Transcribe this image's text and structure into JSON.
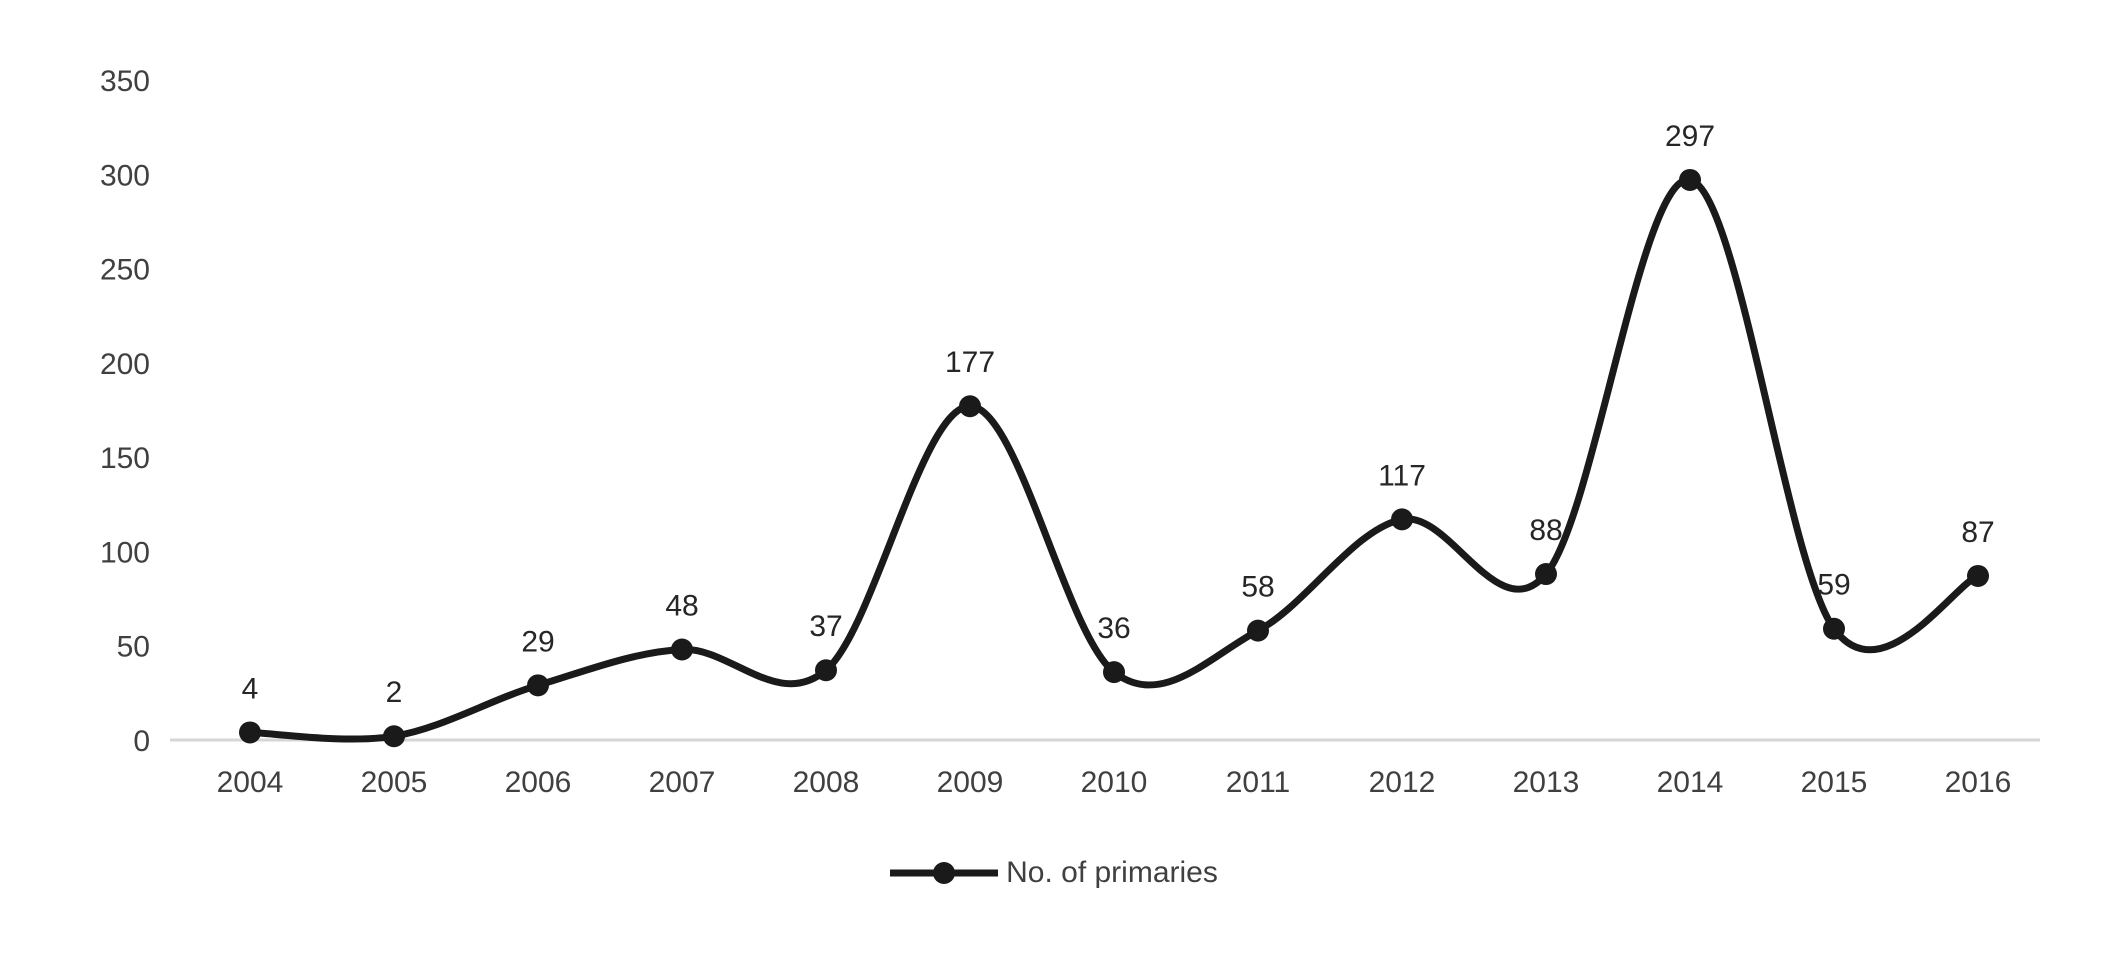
{
  "chart_data": {
    "type": "line",
    "title": "",
    "xlabel": "",
    "ylabel": "",
    "categories": [
      "2004",
      "2005",
      "2006",
      "2007",
      "2008",
      "2009",
      "2010",
      "2011",
      "2012",
      "2013",
      "2014",
      "2015",
      "2016"
    ],
    "series": [
      {
        "name": "No. of primaries",
        "values": [
          4,
          2,
          29,
          48,
          37,
          177,
          36,
          58,
          117,
          88,
          297,
          59,
          87
        ]
      }
    ],
    "data_labels_visible": true,
    "ylim": [
      0,
      350
    ],
    "yticks": [
      0,
      50,
      100,
      150,
      200,
      250,
      300,
      350
    ],
    "grid": false,
    "smooth_line": true,
    "legend_position": "bottom-center",
    "colors": {
      "line": "#1a1a1a",
      "marker": "#1a1a1a",
      "axis_line": "#d6d6d6",
      "tick_text": "#404040",
      "data_label_text": "#262626"
    }
  },
  "legend": {
    "label": "No. of primaries"
  }
}
